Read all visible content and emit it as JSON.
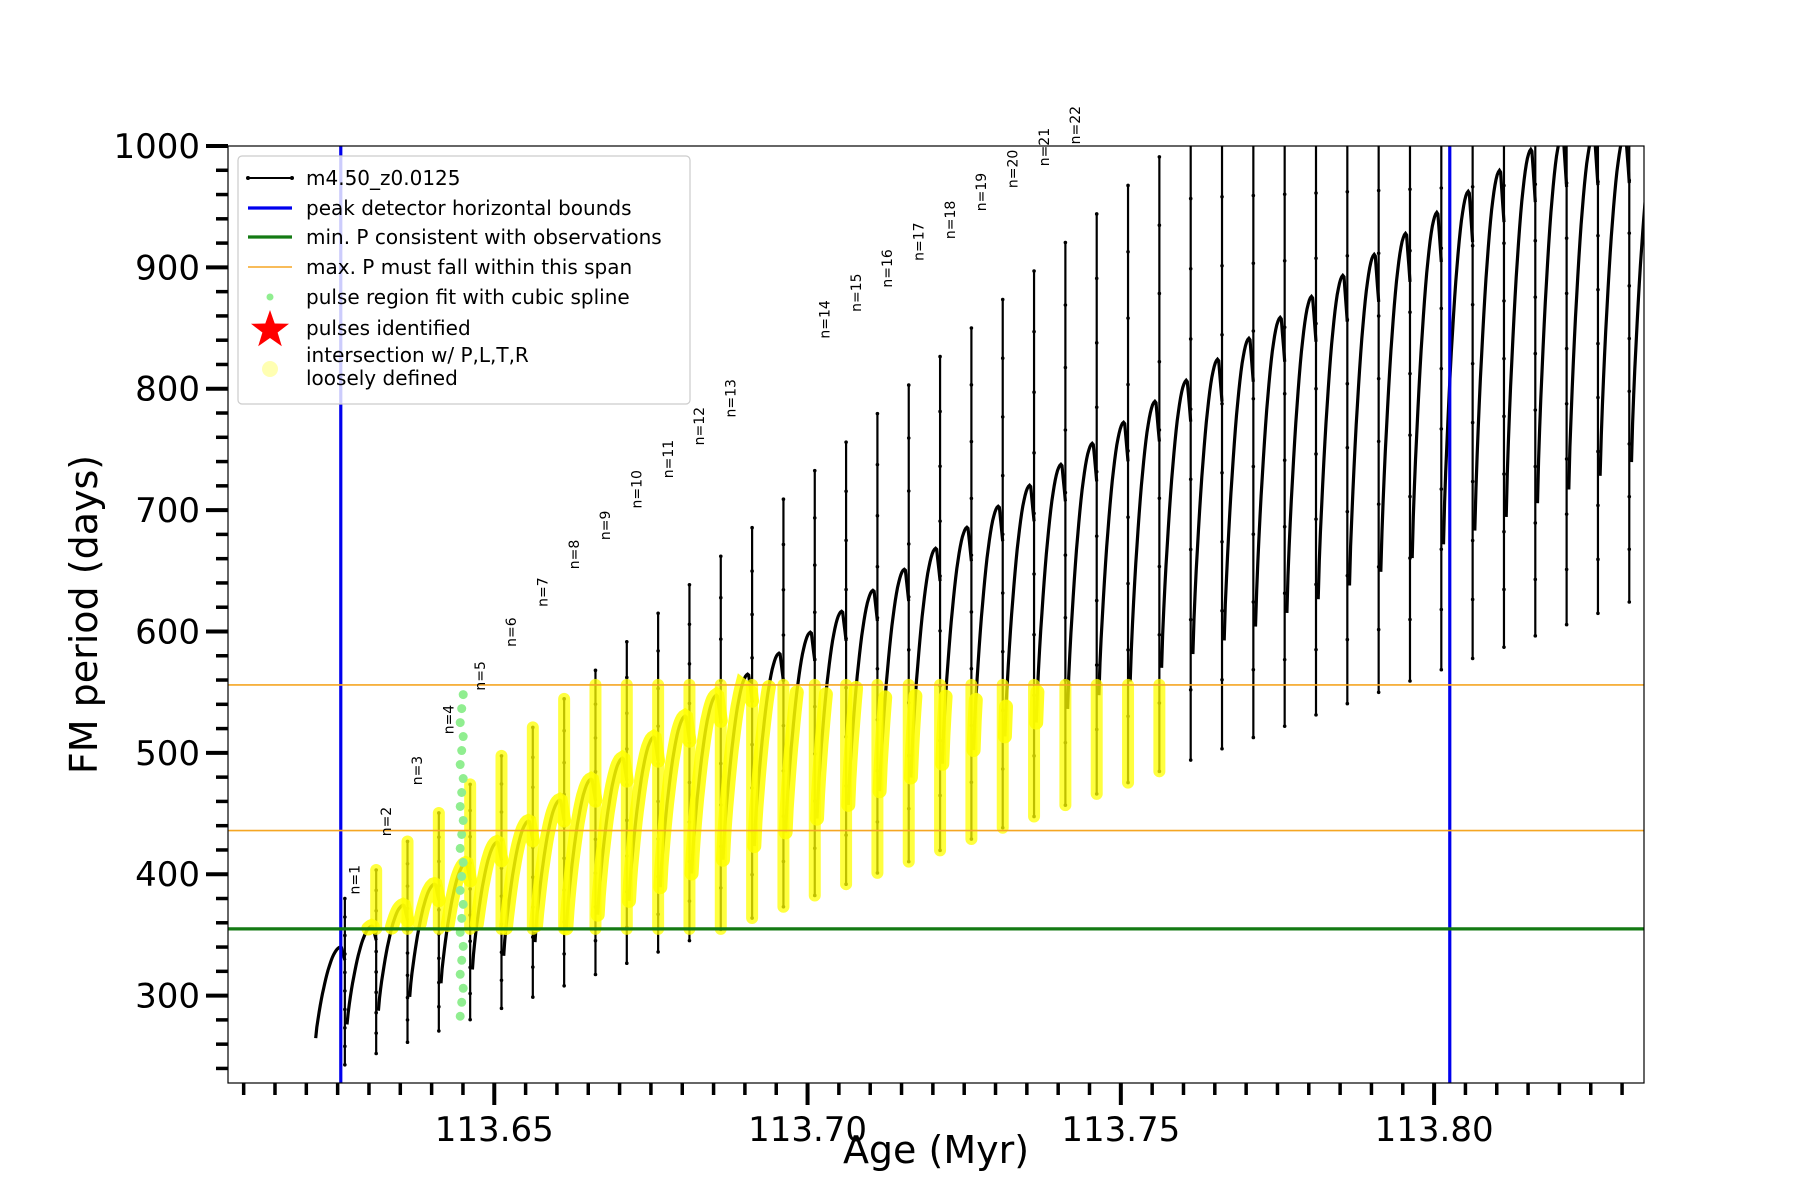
{
  "chart_data": {
    "type": "line",
    "title": "",
    "xlabel": "Age (Myr)",
    "ylabel": "FM period (days)",
    "xlim": [
      113.6075,
      113.8335
    ],
    "ylim": [
      228,
      1000
    ],
    "xticks": [
      113.65,
      113.7,
      113.75,
      113.8
    ],
    "xtick_labels": [
      "113.65",
      "113.70",
      "113.75",
      "113.80"
    ],
    "yticks": [
      300,
      400,
      500,
      600,
      700,
      800,
      900,
      1000
    ],
    "ytick_labels": [
      "300",
      "400",
      "500",
      "600",
      "700",
      "800",
      "900",
      "1000"
    ],
    "grid": false,
    "legend_position": "top-left",
    "colors": {
      "model": "#000000",
      "bounds": "#0000ee",
      "min_p": "#137a13",
      "max_p": "#f5a623",
      "spline": "#90ee90",
      "pulse": "#ff0000",
      "intersection": "#ffff00"
    },
    "legend": [
      {
        "label": "m4.50_z0.0125",
        "kind": "line-marker",
        "color": "#000000"
      },
      {
        "label": "peak detector horizontal bounds",
        "kind": "line",
        "color": "#0000ee"
      },
      {
        "label": "min. P consistent with observations",
        "kind": "line",
        "color": "#137a13"
      },
      {
        "label": "max. P must fall within this span",
        "kind": "thin-line",
        "color": "#f5a623"
      },
      {
        "label": "pulse region fit with cubic spline",
        "kind": "dot",
        "color": "#90ee90"
      },
      {
        "label": "pulses identified",
        "kind": "star",
        "color": "#ff0000"
      },
      {
        "label": "intersection w/ P,L,T,R\nloosely defined",
        "kind": "big-dot",
        "color": "#ffff00"
      }
    ],
    "vertical_lines": [
      113.6255,
      113.8025
    ],
    "min_period_line": 355,
    "max_period_span": [
      436,
      556
    ],
    "pulse_labels": [
      {
        "text": "n=1",
        "x": 113.6285,
        "y": 380
      },
      {
        "text": "n=2",
        "x": 113.6335,
        "y": 428
      },
      {
        "text": "n=3",
        "x": 113.6385,
        "y": 470
      },
      {
        "text": "n=4",
        "x": 113.6435,
        "y": 512
      },
      {
        "text": "n=5",
        "x": 113.6485,
        "y": 548
      },
      {
        "text": "n=6",
        "x": 113.6535,
        "y": 584
      },
      {
        "text": "n=7",
        "x": 113.6585,
        "y": 617
      },
      {
        "text": "n=8",
        "x": 113.6635,
        "y": 648
      },
      {
        "text": "n=9",
        "x": 113.6685,
        "y": 672
      },
      {
        "text": "n=10",
        "x": 113.6735,
        "y": 698
      },
      {
        "text": "n=11",
        "x": 113.6785,
        "y": 723
      },
      {
        "text": "n=12",
        "x": 113.6835,
        "y": 750
      },
      {
        "text": "n=13",
        "x": 113.6885,
        "y": 773
      },
      {
        "text": "n=14",
        "x": 113.7035,
        "y": 838
      },
      {
        "text": "n=15",
        "x": 113.7085,
        "y": 860
      },
      {
        "text": "n=16",
        "x": 113.7135,
        "y": 880
      },
      {
        "text": "n=17",
        "x": 113.7185,
        "y": 902
      },
      {
        "text": "n=18",
        "x": 113.7235,
        "y": 920
      },
      {
        "text": "n=19",
        "x": 113.7285,
        "y": 943
      },
      {
        "text": "n=20",
        "x": 113.7335,
        "y": 962
      },
      {
        "text": "n=21",
        "x": 113.7385,
        "y": 980
      },
      {
        "text": "n=22",
        "x": 113.7435,
        "y": 998
      }
    ],
    "series": [
      {
        "name": "m4.50_z0.0125",
        "pulse_start": 113.6215,
        "pulse_spacing": 0.005,
        "pulse_count": 44,
        "first_pulse_trough": 243,
        "trough_increment": 9.3,
        "first_arc_top": 340,
        "arc_top_increment": 17.3,
        "first_spike_top": 380,
        "spike_top_increment": 23.5
      }
    ],
    "spline_region": {
      "x": 113.6448,
      "y_range": [
        283,
        548
      ]
    },
    "intersections": {
      "y_min": 355,
      "y_max": 556,
      "x_start": 113.6255,
      "x_end": 113.8025
    }
  }
}
